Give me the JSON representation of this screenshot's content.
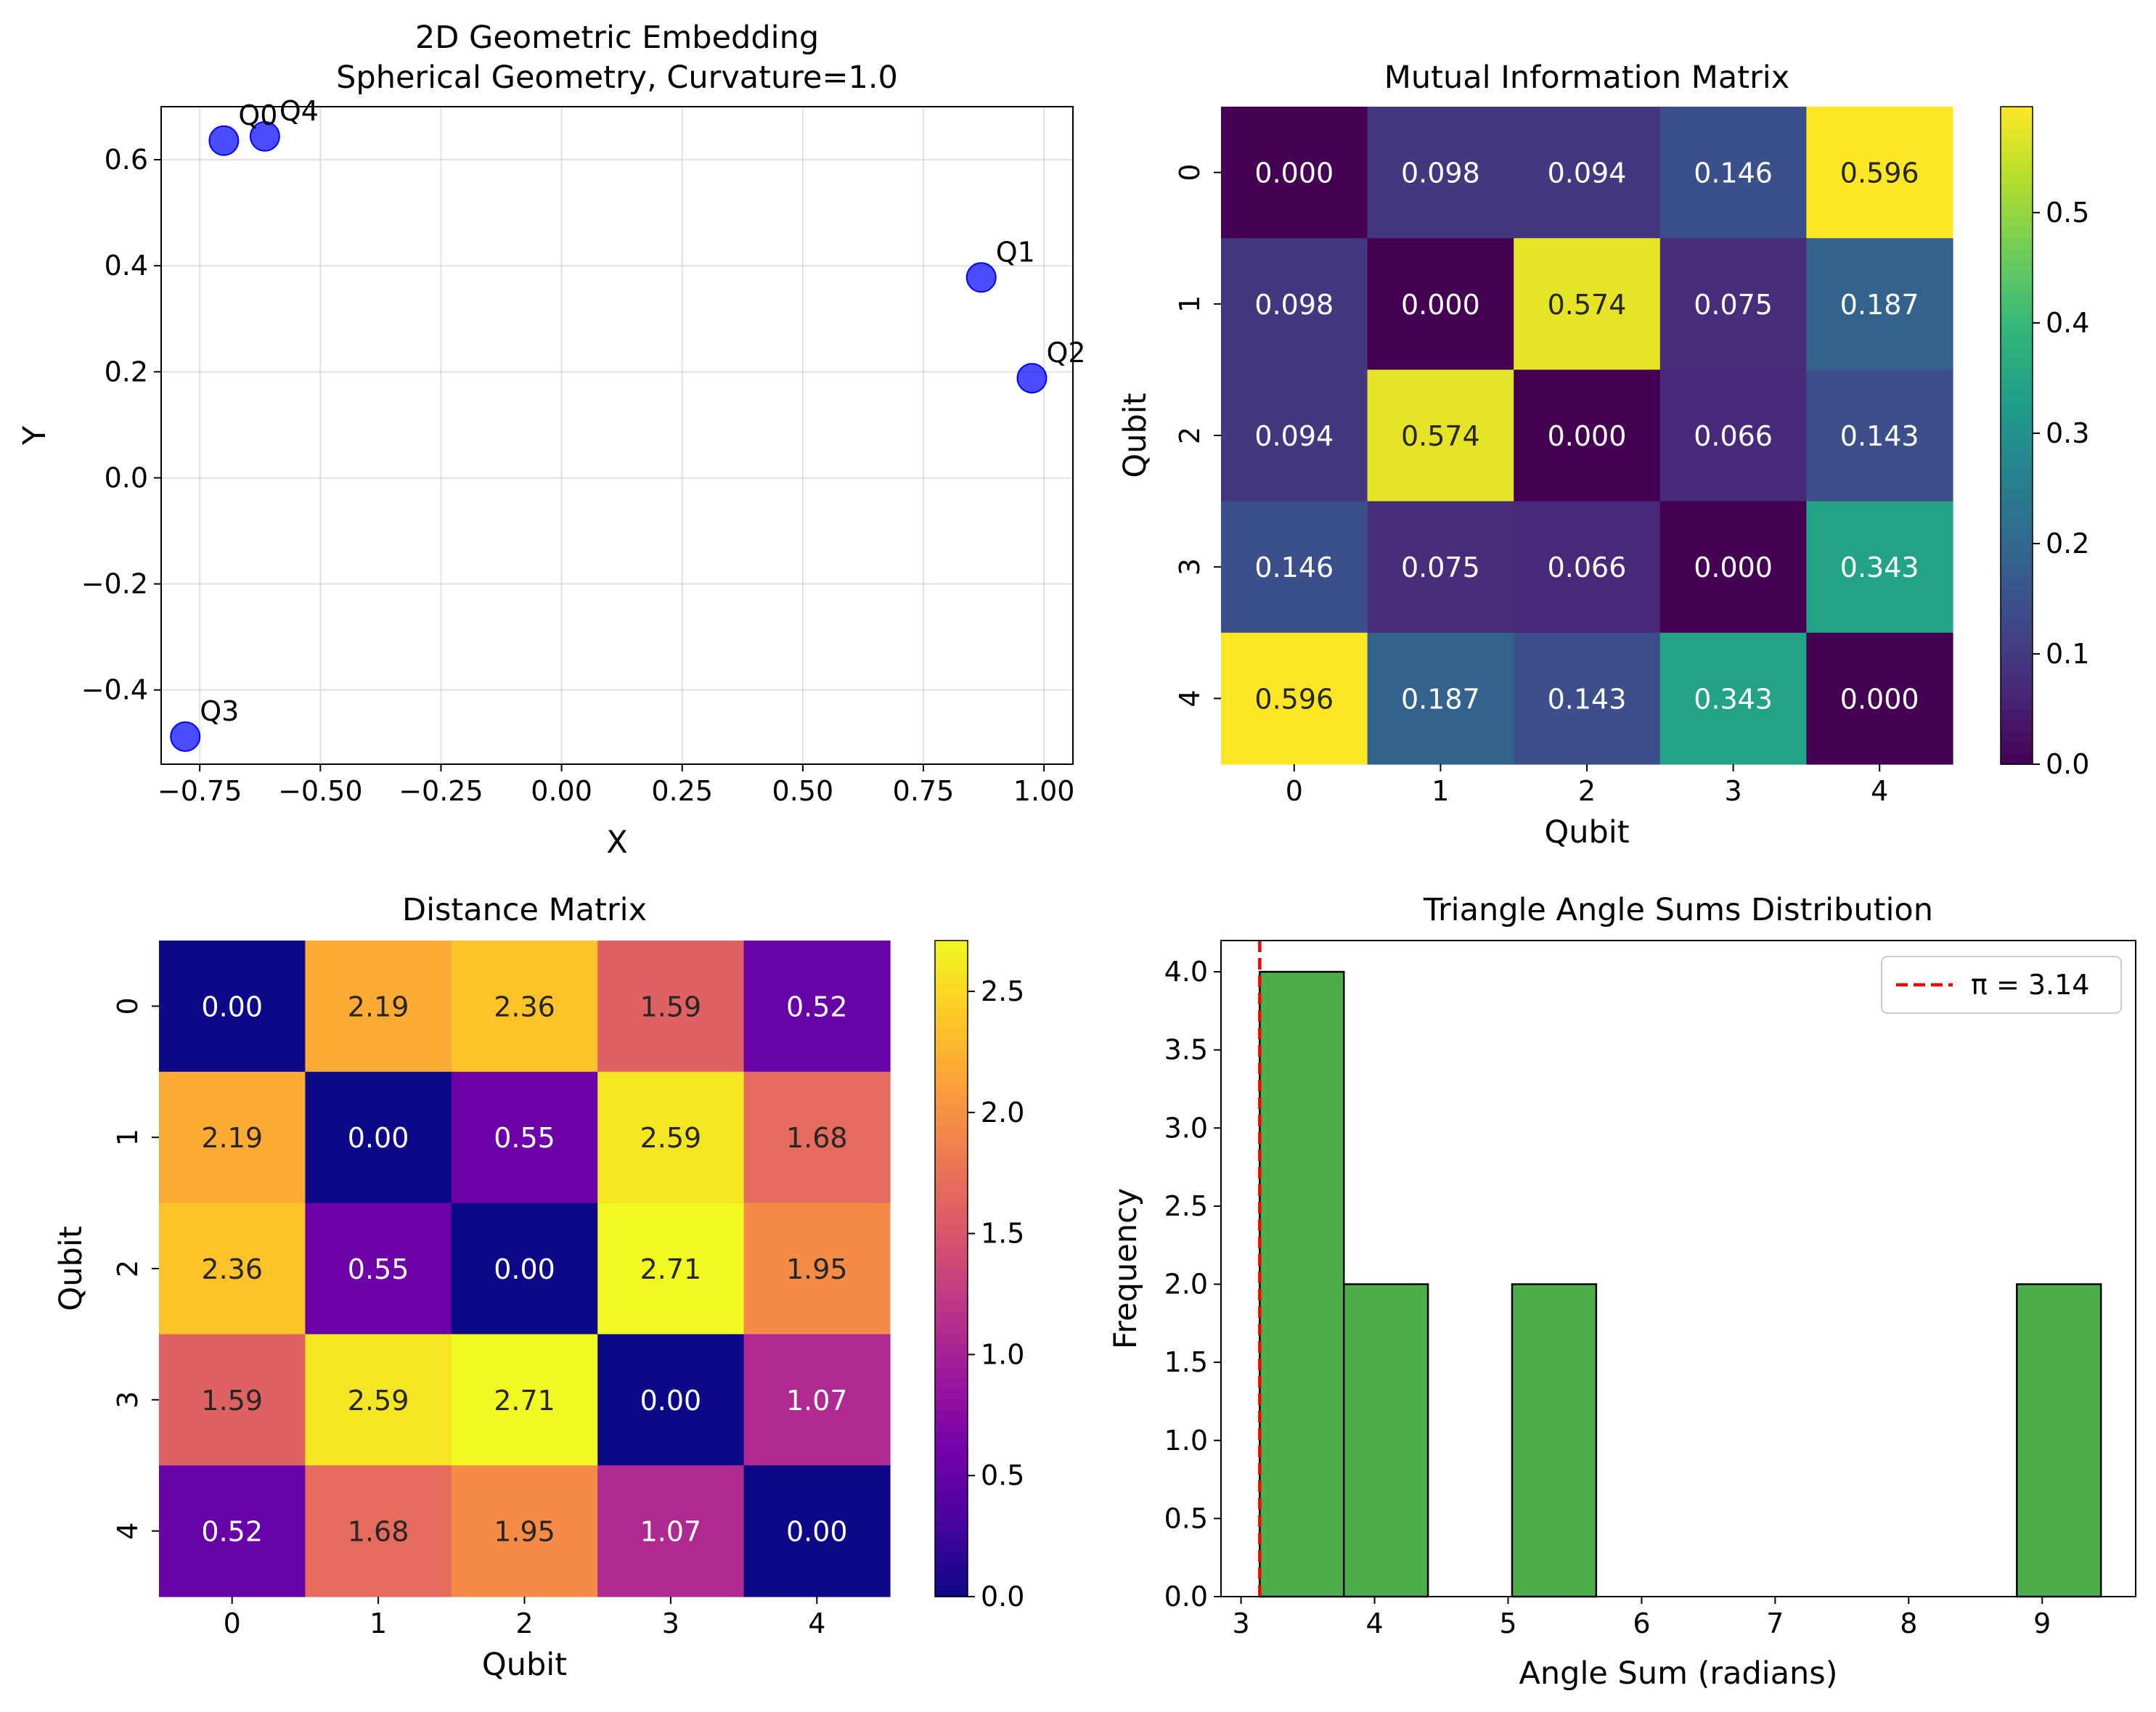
{
  "figure": {
    "background": "#ffffff"
  },
  "chart_data": [
    {
      "type": "scatter",
      "title": "2D Geometric Embedding\nSpherical Geometry, Curvature=1.0",
      "title_lines": [
        "2D Geometric Embedding",
        "Spherical Geometry, Curvature=1.0"
      ],
      "xlabel": "X",
      "ylabel": "Y",
      "xlim": [
        -0.83,
        1.06
      ],
      "ylim": [
        -0.54,
        0.7
      ],
      "xticks": [
        -0.75,
        -0.5,
        -0.25,
        0.0,
        0.25,
        0.5,
        0.75,
        1.0
      ],
      "xtick_labels": [
        "−0.75",
        "−0.50",
        "−0.25",
        "0.00",
        "0.25",
        "0.50",
        "0.75",
        "1.00"
      ],
      "yticks": [
        -0.4,
        -0.2,
        0.0,
        0.2,
        0.4,
        0.6
      ],
      "ytick_labels": [
        "−0.4",
        "−0.2",
        "0.0",
        "0.2",
        "0.4",
        "0.6"
      ],
      "grid": true,
      "point_color": "#0000ff",
      "points": [
        {
          "label": "Q0",
          "x": -0.7,
          "y": 0.636
        },
        {
          "label": "Q1",
          "x": 0.87,
          "y": 0.378
        },
        {
          "label": "Q2",
          "x": 0.975,
          "y": 0.188
        },
        {
          "label": "Q3",
          "x": -0.78,
          "y": -0.488
        },
        {
          "label": "Q4",
          "x": -0.615,
          "y": 0.644
        }
      ]
    },
    {
      "type": "heatmap",
      "title": "Mutual Information Matrix",
      "xlabel": "Qubit",
      "ylabel": "Qubit",
      "colormap": "viridis",
      "categories": [
        "0",
        "1",
        "2",
        "3",
        "4"
      ],
      "matrix": [
        [
          0.0,
          0.098,
          0.094,
          0.146,
          0.596
        ],
        [
          0.098,
          0.0,
          0.574,
          0.075,
          0.187
        ],
        [
          0.094,
          0.574,
          0.0,
          0.066,
          0.143
        ],
        [
          0.146,
          0.075,
          0.066,
          0.0,
          0.343
        ],
        [
          0.596,
          0.187,
          0.143,
          0.343,
          0.0
        ]
      ],
      "cell_labels": [
        [
          "0.000",
          "0.098",
          "0.094",
          "0.146",
          "0.596"
        ],
        [
          "0.098",
          "0.000",
          "0.574",
          "0.075",
          "0.187"
        ],
        [
          "0.094",
          "0.574",
          "0.000",
          "0.066",
          "0.143"
        ],
        [
          "0.146",
          "0.075",
          "0.066",
          "0.000",
          "0.343"
        ],
        [
          "0.596",
          "0.187",
          "0.143",
          "0.343",
          "0.000"
        ]
      ],
      "vmin": 0.0,
      "vmax": 0.596,
      "colorbar_ticks": [
        0.0,
        0.1,
        0.2,
        0.3,
        0.4,
        0.5
      ],
      "colorbar_tick_labels": [
        "0.0",
        "0.1",
        "0.2",
        "0.3",
        "0.4",
        "0.5"
      ]
    },
    {
      "type": "heatmap",
      "title": "Distance Matrix",
      "xlabel": "Qubit",
      "ylabel": "Qubit",
      "colormap": "plasma",
      "categories": [
        "0",
        "1",
        "2",
        "3",
        "4"
      ],
      "matrix": [
        [
          0.0,
          2.19,
          2.36,
          1.59,
          0.52
        ],
        [
          2.19,
          0.0,
          0.55,
          2.59,
          1.68
        ],
        [
          2.36,
          0.55,
          0.0,
          2.71,
          1.95
        ],
        [
          1.59,
          2.59,
          2.71,
          0.0,
          1.07
        ],
        [
          0.52,
          1.68,
          1.95,
          1.07,
          0.0
        ]
      ],
      "cell_labels": [
        [
          "0.00",
          "2.19",
          "2.36",
          "1.59",
          "0.52"
        ],
        [
          "2.19",
          "0.00",
          "0.55",
          "2.59",
          "1.68"
        ],
        [
          "2.36",
          "0.55",
          "0.00",
          "2.71",
          "1.95"
        ],
        [
          "1.59",
          "2.59",
          "2.71",
          "0.00",
          "1.07"
        ],
        [
          "0.52",
          "1.68",
          "1.95",
          "1.07",
          "0.00"
        ]
      ],
      "vmin": 0.0,
      "vmax": 2.71,
      "colorbar_ticks": [
        0.0,
        0.5,
        1.0,
        1.5,
        2.0,
        2.5
      ],
      "colorbar_tick_labels": [
        "0.0",
        "0.5",
        "1.0",
        "1.5",
        "2.0",
        "2.5"
      ]
    },
    {
      "type": "bar",
      "subtype": "histogram",
      "title": "Triangle Angle Sums Distribution",
      "xlabel": "Angle Sum (radians)",
      "ylabel": "Frequency",
      "xlim": [
        2.85,
        9.7
      ],
      "ylim": [
        0.0,
        4.2
      ],
      "xticks": [
        3,
        4,
        5,
        6,
        7,
        8,
        9
      ],
      "xtick_labels": [
        "3",
        "4",
        "5",
        "6",
        "7",
        "8",
        "9"
      ],
      "yticks": [
        0.0,
        0.5,
        1.0,
        1.5,
        2.0,
        2.5,
        3.0,
        3.5,
        4.0
      ],
      "ytick_labels": [
        "0.0",
        "0.5",
        "1.0",
        "1.5",
        "2.0",
        "2.5",
        "3.0",
        "3.5",
        "4.0"
      ],
      "bin_edges": [
        3.14,
        3.77,
        4.4,
        5.03,
        5.66,
        6.29,
        6.92,
        7.55,
        8.18,
        8.81,
        9.44
      ],
      "counts": [
        4,
        2,
        0,
        2,
        0,
        0,
        0,
        0,
        0,
        2
      ],
      "bar_color": "#2ca02c",
      "reference_line": {
        "value": 3.14,
        "label": "π = 3.14",
        "color": "#ff0000",
        "style": "dashed"
      },
      "legend": {
        "position": "top-right",
        "entries": [
          "π = 3.14"
        ]
      }
    }
  ]
}
